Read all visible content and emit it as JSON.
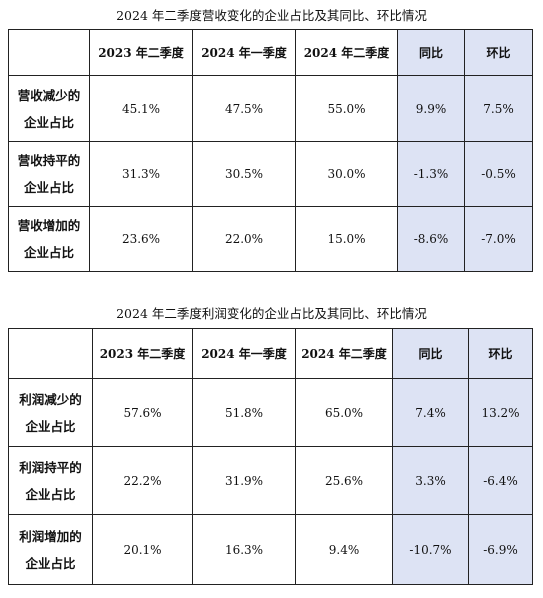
{
  "table1": {
    "caption": "2024 年二季度营收变化的企业占比及其同比、环比情况",
    "columns": [
      "",
      "2023 年二季度",
      "2024 年一季度",
      "2024 年二季度",
      "同比",
      "环比"
    ],
    "rows": [
      {
        "label_line1": "营收减少的",
        "label_line2": "企业占比",
        "values": [
          "45.1%",
          "47.5%",
          "55.0%",
          "9.9%",
          "7.5%"
        ]
      },
      {
        "label_line1": "营收持平的",
        "label_line2": "企业占比",
        "values": [
          "31.3%",
          "30.5%",
          "30.0%",
          "-1.3%",
          "-0.5%"
        ]
      },
      {
        "label_line1": "营收增加的",
        "label_line2": "企业占比",
        "values": [
          "23.6%",
          "22.0%",
          "15.0%",
          "-8.6%",
          "-7.0%"
        ]
      }
    ]
  },
  "table2": {
    "caption": "2024 年二季度利润变化的企业占比及其同比、环比情况",
    "columns": [
      "",
      "2023 年二季度",
      "2024 年一季度",
      "2024 年二季度",
      "同比",
      "环比"
    ],
    "rows": [
      {
        "label_line1": "利润减少的",
        "label_line2": "企业占比",
        "values": [
          "57.6%",
          "51.8%",
          "65.0%",
          "7.4%",
          "13.2%"
        ]
      },
      {
        "label_line1": "利润持平的",
        "label_line2": "企业占比",
        "values": [
          "22.2%",
          "31.9%",
          "25.6%",
          "3.3%",
          "-6.4%"
        ]
      },
      {
        "label_line1": "利润增加的",
        "label_line2": "企业占比",
        "values": [
          "20.1%",
          "16.3%",
          "9.4%",
          "-10.7%",
          "-6.9%"
        ]
      }
    ]
  },
  "colors": {
    "highlight": "#dde3f4",
    "border": "#222222"
  }
}
